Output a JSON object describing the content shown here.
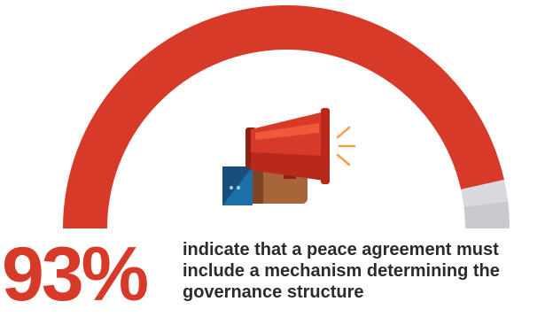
{
  "chart_data": {
    "type": "gauge",
    "value": 93,
    "max": 100,
    "unit": "%",
    "display_value": "93%",
    "colors": {
      "filled": "#d73a28",
      "remaining": "#d9d9de",
      "remaining_dark": "#c9c9cf"
    }
  },
  "caption": {
    "lines": [
      "indicate that a peace agreement must",
      "include a mechanism determining the",
      "governance structure"
    ]
  },
  "icon": {
    "name": "megaphone-icon",
    "colors": {
      "horn": "#d73a28",
      "horn_dark": "#b8291b",
      "horn_light": "#f05a3a",
      "rays": "#f0a04b",
      "sleeve": "#1d6fa8",
      "sleeve_dark": "#174f7a",
      "hand": "#a9653a",
      "hand_dark": "#7e4523"
    }
  }
}
